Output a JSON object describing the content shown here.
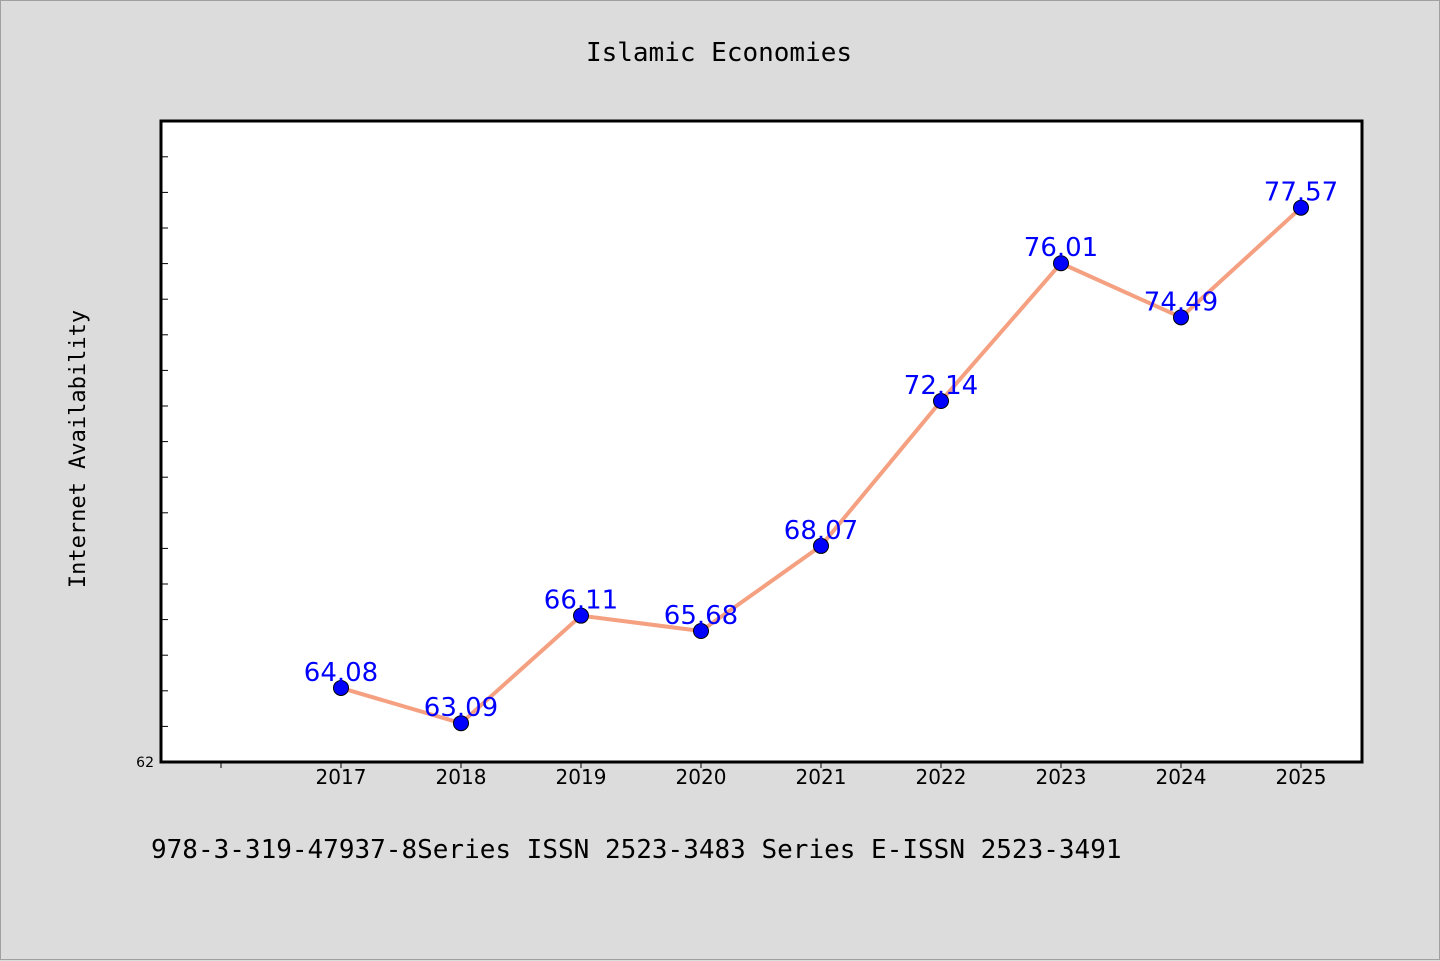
{
  "chart_data": {
    "type": "line",
    "title": "Islamic Economies",
    "ylabel": "Internet Availability",
    "xlabel": "",
    "x": [
      "2017",
      "2018",
      "2019",
      "2020",
      "2021",
      "2022",
      "2023",
      "2024",
      "2025"
    ],
    "series": [
      {
        "values": [
          64.08,
          63.09,
          66.11,
          65.68,
          68.07,
          72.14,
          76.01,
          74.49,
          77.57
        ]
      }
    ],
    "data_labels": [
      "64.08",
      "63.09",
      "66.11",
      "65.68",
      "68.07",
      "72.14",
      "76.01",
      "74.49",
      "77.57"
    ],
    "ylim": [
      62,
      80
    ],
    "y_tick_labels": [
      "62"
    ],
    "grid": false,
    "line_color": "#f4a081",
    "marker_color": "#0000ff",
    "label_color": "#0000ff"
  },
  "footer": {
    "text": "978-3-319-47937-8Series ISSN 2523-3483 Series E-ISSN 2523-3491"
  }
}
